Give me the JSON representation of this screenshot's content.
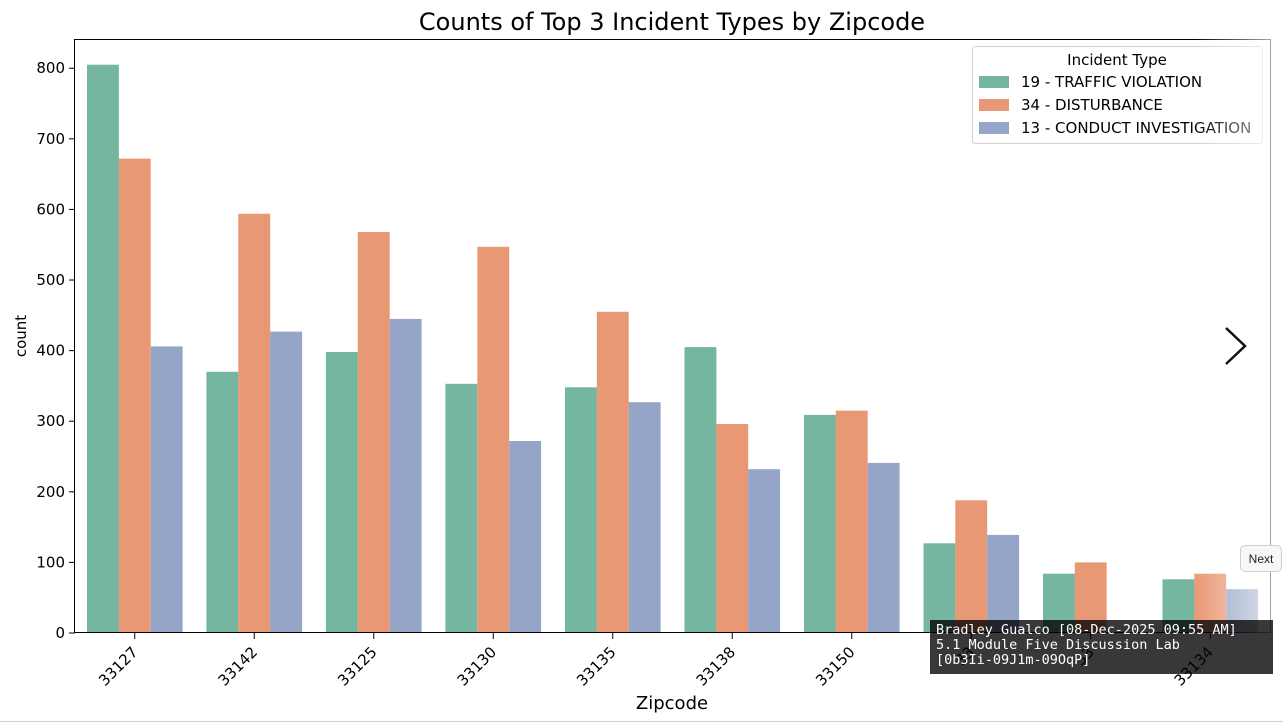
{
  "chart_data": {
    "type": "bar",
    "title": "Counts of Top 3 Incident Types by Zipcode",
    "xlabel": "Zipcode",
    "ylabel": "count",
    "ylim": [
      0,
      840
    ],
    "yticks": [
      0,
      100,
      200,
      300,
      400,
      500,
      600,
      700,
      800
    ],
    "grid": false,
    "legend": {
      "title": "Incident Type",
      "placement": "top-right"
    },
    "categories": [
      "33127",
      "33142",
      "33125",
      "33130",
      "33135",
      "33138",
      "33150",
      "33",
      "33",
      "33134"
    ],
    "series": [
      {
        "name": "19 - TRAFFIC VIOLATION",
        "color": "#74b6a0",
        "values": [
          805,
          370,
          398,
          353,
          348,
          405,
          309,
          127,
          84,
          76
        ]
      },
      {
        "name": "34 - DISTURBANCE",
        "color": "#e99875",
        "values": [
          672,
          594,
          568,
          547,
          455,
          296,
          315,
          188,
          100,
          84
        ]
      },
      {
        "name": "13 - CONDUCT INVESTIGATION",
        "color": "#95a5c7",
        "values": [
          406,
          427,
          445,
          272,
          327,
          232,
          241,
          139,
          0,
          62
        ]
      }
    ]
  },
  "ui": {
    "next_label": "Next",
    "watermark": {
      "line1": "Bradley Gualco [08-Dec-2025 09:55 AM]",
      "line2": "5.1 Module Five Discussion Lab",
      "line3": "[0b3Ii-09J1m-09OqP]"
    }
  }
}
